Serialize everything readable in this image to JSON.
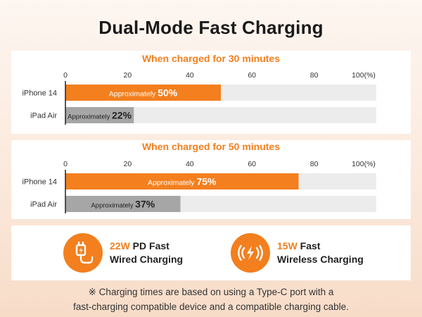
{
  "title": "Dual-Mode Fast Charging",
  "chart_data": [
    {
      "type": "bar",
      "orientation": "horizontal",
      "title": "When charged for 30 minutes",
      "categories": [
        "iPhone 14",
        "iPad Air"
      ],
      "values": [
        50,
        22
      ],
      "value_labels": [
        {
          "prefix": "Approximately ",
          "value": "50%"
        },
        {
          "prefix": "Approximately ",
          "value": "22%"
        }
      ],
      "bar_colors": [
        "#f37f1e",
        "#a6a6a6"
      ],
      "xlim": [
        0,
        100
      ],
      "xticks": [
        "0",
        "20",
        "40",
        "60",
        "80",
        "100(%)"
      ],
      "grid": false
    },
    {
      "type": "bar",
      "orientation": "horizontal",
      "title": "When charged for 50 minutes",
      "categories": [
        "iPhone 14",
        "iPad Air"
      ],
      "values": [
        75,
        37
      ],
      "value_labels": [
        {
          "prefix": "Approximately ",
          "value": "75%"
        },
        {
          "prefix": "Approximately ",
          "value": "37%"
        }
      ],
      "bar_colors": [
        "#f37f1e",
        "#a6a6a6"
      ],
      "xlim": [
        0,
        100
      ],
      "xticks": [
        "0",
        "20",
        "40",
        "60",
        "80",
        "100(%)"
      ],
      "grid": false
    }
  ],
  "features": [
    {
      "icon": "wired-plug-icon",
      "accent": "22W",
      "line1": " PD Fast",
      "line2": "Wired Charging"
    },
    {
      "icon": "wireless-signal-icon",
      "accent": "15W",
      "line1": " Fast",
      "line2": "Wireless Charging"
    }
  ],
  "note": {
    "line1": "※ Charging times are based on using a Type-C port with a",
    "line2": "fast-charging compatible device and a compatible charging cable."
  },
  "colors": {
    "accent": "#f37f1e",
    "secondary_bar": "#a6a6a6",
    "track": "#ececec"
  }
}
